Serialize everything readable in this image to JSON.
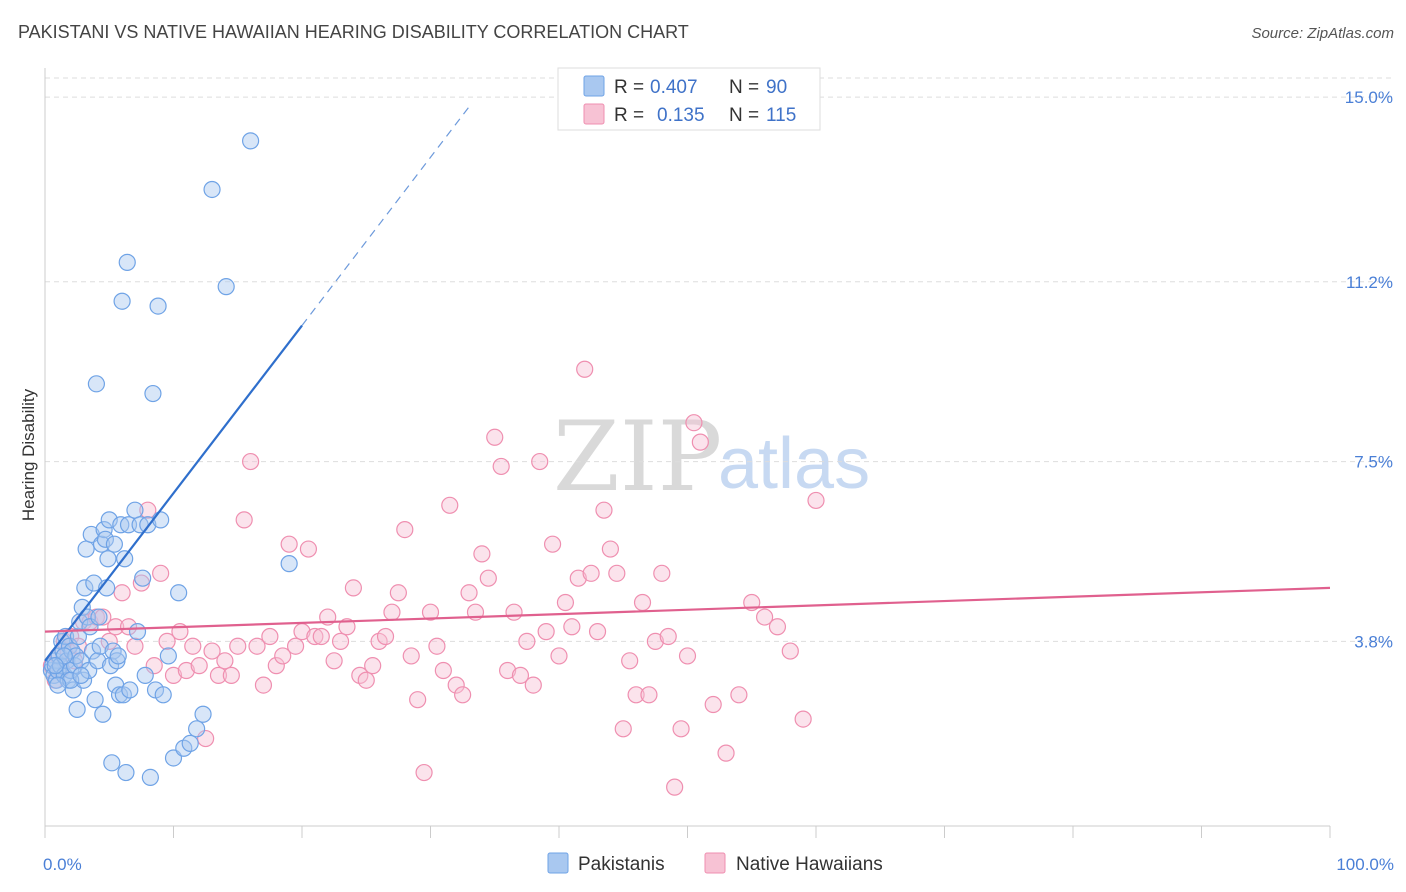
{
  "chart_data": {
    "type": "scatter",
    "title": "PAKISTANI VS NATIVE HAWAIIAN HEARING DISABILITY CORRELATION CHART",
    "source": "Source: ZipAtlas.com",
    "xlabel": "",
    "ylabel": "Hearing Disability",
    "xlim": [
      0,
      100
    ],
    "ylim": [
      0,
      15.6
    ],
    "x_tick_labels": [
      "0.0%",
      "100.0%"
    ],
    "y_ticks": [
      {
        "value": 3.8,
        "label": "3.8%"
      },
      {
        "value": 7.5,
        "label": "7.5%"
      },
      {
        "value": 11.2,
        "label": "11.2%"
      },
      {
        "value": 15.0,
        "label": "15.0%"
      }
    ],
    "watermark": {
      "zip": "ZIP",
      "atlas": "atlas"
    },
    "legend": {
      "r_label": "R =",
      "n_label": "N =",
      "rows": [
        {
          "r": "0.407",
          "n": "90"
        },
        {
          "r": "0.135",
          "n": "115"
        }
      ]
    },
    "series": [
      {
        "name": "Pakistanis",
        "color": "#6fa3e6",
        "fill": "#a9c8f0",
        "line_color": "#2f6fcc",
        "trend": {
          "x0": 0.0,
          "y0": 3.4,
          "x1": 20.0,
          "y1": 10.3,
          "dash_to_x": 33.0,
          "dash_to_y": 14.8
        },
        "points": [
          [
            0.5,
            3.2
          ],
          [
            0.6,
            3.3
          ],
          [
            0.7,
            3.1
          ],
          [
            0.8,
            3.4
          ],
          [
            0.9,
            3.0
          ],
          [
            1.0,
            3.2
          ],
          [
            1.1,
            3.5
          ],
          [
            1.2,
            3.3
          ],
          [
            1.3,
            3.8
          ],
          [
            1.4,
            3.6
          ],
          [
            1.5,
            3.1
          ],
          [
            1.6,
            3.9
          ],
          [
            1.7,
            3.4
          ],
          [
            1.8,
            3.0
          ],
          [
            1.9,
            3.7
          ],
          [
            2.0,
            3.2
          ],
          [
            2.1,
            3.6
          ],
          [
            2.2,
            2.8
          ],
          [
            2.3,
            3.3
          ],
          [
            2.4,
            3.5
          ],
          [
            2.5,
            2.4
          ],
          [
            2.6,
            3.9
          ],
          [
            2.7,
            4.2
          ],
          [
            2.8,
            3.4
          ],
          [
            2.9,
            4.5
          ],
          [
            3.0,
            3.0
          ],
          [
            3.1,
            4.9
          ],
          [
            3.2,
            5.7
          ],
          [
            3.3,
            4.3
          ],
          [
            3.4,
            3.2
          ],
          [
            3.5,
            4.1
          ],
          [
            3.6,
            6.0
          ],
          [
            3.7,
            3.6
          ],
          [
            3.8,
            5.0
          ],
          [
            3.9,
            2.6
          ],
          [
            4.0,
            9.1
          ],
          [
            4.1,
            3.4
          ],
          [
            4.2,
            4.3
          ],
          [
            4.3,
            3.7
          ],
          [
            4.4,
            5.8
          ],
          [
            4.5,
            2.3
          ],
          [
            4.6,
            6.1
          ],
          [
            4.7,
            5.9
          ],
          [
            4.8,
            4.9
          ],
          [
            4.9,
            5.5
          ],
          [
            5.0,
            6.3
          ],
          [
            5.1,
            3.3
          ],
          [
            5.2,
            1.3
          ],
          [
            5.3,
            3.6
          ],
          [
            5.4,
            5.8
          ],
          [
            5.5,
            2.9
          ],
          [
            5.6,
            3.4
          ],
          [
            5.7,
            3.5
          ],
          [
            5.8,
            2.7
          ],
          [
            5.9,
            6.2
          ],
          [
            6.0,
            10.8
          ],
          [
            6.1,
            2.7
          ],
          [
            6.2,
            5.5
          ],
          [
            6.3,
            1.1
          ],
          [
            6.4,
            11.6
          ],
          [
            6.5,
            6.2
          ],
          [
            6.6,
            2.8
          ],
          [
            7.0,
            6.5
          ],
          [
            7.2,
            4.0
          ],
          [
            7.4,
            6.2
          ],
          [
            7.6,
            5.1
          ],
          [
            7.8,
            3.1
          ],
          [
            8.0,
            6.2
          ],
          [
            8.2,
            1.0
          ],
          [
            8.4,
            8.9
          ],
          [
            8.6,
            2.8
          ],
          [
            8.8,
            10.7
          ],
          [
            9.0,
            6.3
          ],
          [
            9.2,
            2.7
          ],
          [
            9.6,
            3.5
          ],
          [
            10.0,
            1.4
          ],
          [
            10.4,
            4.8
          ],
          [
            10.8,
            1.6
          ],
          [
            11.3,
            1.7
          ],
          [
            11.8,
            2.0
          ],
          [
            12.3,
            2.3
          ],
          [
            13.0,
            13.1
          ],
          [
            14.1,
            11.1
          ],
          [
            16.0,
            14.1
          ],
          [
            19.0,
            5.4
          ],
          [
            2.0,
            3.0
          ],
          [
            1.0,
            2.9
          ],
          [
            1.5,
            3.5
          ],
          [
            2.8,
            3.1
          ],
          [
            0.8,
            3.3
          ]
        ]
      },
      {
        "name": "Native Hawaiians",
        "color": "#ef8fb0",
        "fill": "#f7c2d4",
        "line_color": "#e0608e",
        "trend": {
          "x0": 0.0,
          "y0": 4.0,
          "x1": 100.0,
          "y1": 4.9
        },
        "points": [
          [
            0.5,
            3.3
          ],
          [
            0.8,
            3.0
          ],
          [
            1.0,
            3.5
          ],
          [
            1.2,
            3.2
          ],
          [
            1.5,
            3.8
          ],
          [
            1.8,
            3.6
          ],
          [
            2.0,
            3.9
          ],
          [
            2.3,
            3.4
          ],
          [
            2.6,
            3.7
          ],
          [
            3.0,
            4.2
          ],
          [
            3.5,
            4.2
          ],
          [
            4.0,
            4.3
          ],
          [
            4.5,
            4.3
          ],
          [
            5.0,
            3.8
          ],
          [
            5.5,
            4.1
          ],
          [
            6.0,
            4.8
          ],
          [
            6.5,
            4.1
          ],
          [
            7.0,
            3.7
          ],
          [
            7.5,
            5.0
          ],
          [
            8.0,
            6.5
          ],
          [
            8.5,
            3.3
          ],
          [
            9.0,
            5.2
          ],
          [
            9.5,
            3.8
          ],
          [
            10.0,
            3.1
          ],
          [
            10.5,
            4.0
          ],
          [
            11.0,
            3.2
          ],
          [
            11.5,
            3.7
          ],
          [
            12.0,
            3.3
          ],
          [
            12.5,
            1.8
          ],
          [
            13.0,
            3.6
          ],
          [
            13.5,
            3.1
          ],
          [
            14.0,
            3.4
          ],
          [
            14.5,
            3.1
          ],
          [
            15.0,
            3.7
          ],
          [
            15.5,
            6.3
          ],
          [
            16.0,
            7.5
          ],
          [
            16.5,
            3.7
          ],
          [
            17.0,
            2.9
          ],
          [
            17.5,
            3.9
          ],
          [
            18.0,
            3.3
          ],
          [
            18.5,
            3.5
          ],
          [
            19.0,
            5.8
          ],
          [
            19.5,
            3.7
          ],
          [
            20.0,
            4.0
          ],
          [
            20.5,
            5.7
          ],
          [
            21.0,
            3.9
          ],
          [
            21.5,
            3.9
          ],
          [
            22.0,
            4.3
          ],
          [
            22.5,
            3.4
          ],
          [
            23.0,
            3.8
          ],
          [
            23.5,
            4.1
          ],
          [
            24.0,
            4.9
          ],
          [
            24.5,
            3.1
          ],
          [
            25.0,
            3.0
          ],
          [
            25.5,
            3.3
          ],
          [
            26.0,
            3.8
          ],
          [
            26.5,
            3.9
          ],
          [
            27.0,
            4.4
          ],
          [
            27.5,
            4.8
          ],
          [
            28.0,
            6.1
          ],
          [
            28.5,
            3.5
          ],
          [
            29.0,
            2.6
          ],
          [
            29.5,
            1.1
          ],
          [
            30.0,
            4.4
          ],
          [
            30.5,
            3.7
          ],
          [
            31.0,
            3.2
          ],
          [
            31.5,
            6.6
          ],
          [
            32.0,
            2.9
          ],
          [
            32.5,
            2.7
          ],
          [
            33.0,
            4.8
          ],
          [
            33.5,
            4.4
          ],
          [
            34.0,
            5.6
          ],
          [
            34.5,
            5.1
          ],
          [
            35.0,
            8.0
          ],
          [
            35.5,
            7.4
          ],
          [
            36.0,
            3.2
          ],
          [
            36.5,
            4.4
          ],
          [
            37.0,
            3.1
          ],
          [
            37.5,
            3.8
          ],
          [
            38.0,
            2.9
          ],
          [
            38.5,
            7.5
          ],
          [
            39.0,
            4.0
          ],
          [
            39.5,
            5.8
          ],
          [
            40.0,
            3.5
          ],
          [
            40.5,
            4.6
          ],
          [
            41.0,
            4.1
          ],
          [
            41.5,
            5.1
          ],
          [
            42.0,
            9.4
          ],
          [
            42.5,
            5.2
          ],
          [
            43.0,
            4.0
          ],
          [
            43.5,
            6.5
          ],
          [
            44.0,
            5.7
          ],
          [
            44.5,
            5.2
          ],
          [
            45.0,
            2.0
          ],
          [
            45.5,
            3.4
          ],
          [
            46.0,
            2.7
          ],
          [
            46.5,
            4.6
          ],
          [
            47.0,
            2.7
          ],
          [
            47.5,
            3.8
          ],
          [
            48.0,
            5.2
          ],
          [
            48.5,
            3.9
          ],
          [
            49.0,
            0.8
          ],
          [
            49.5,
            2.0
          ],
          [
            50.0,
            3.5
          ],
          [
            50.5,
            8.3
          ],
          [
            51.0,
            7.9
          ],
          [
            52.0,
            2.5
          ],
          [
            53.0,
            1.5
          ],
          [
            54.0,
            2.7
          ],
          [
            55.0,
            4.6
          ],
          [
            56.0,
            4.3
          ],
          [
            57.0,
            4.1
          ],
          [
            58.0,
            3.6
          ],
          [
            59.0,
            2.2
          ],
          [
            60.0,
            6.7
          ]
        ]
      }
    ]
  }
}
